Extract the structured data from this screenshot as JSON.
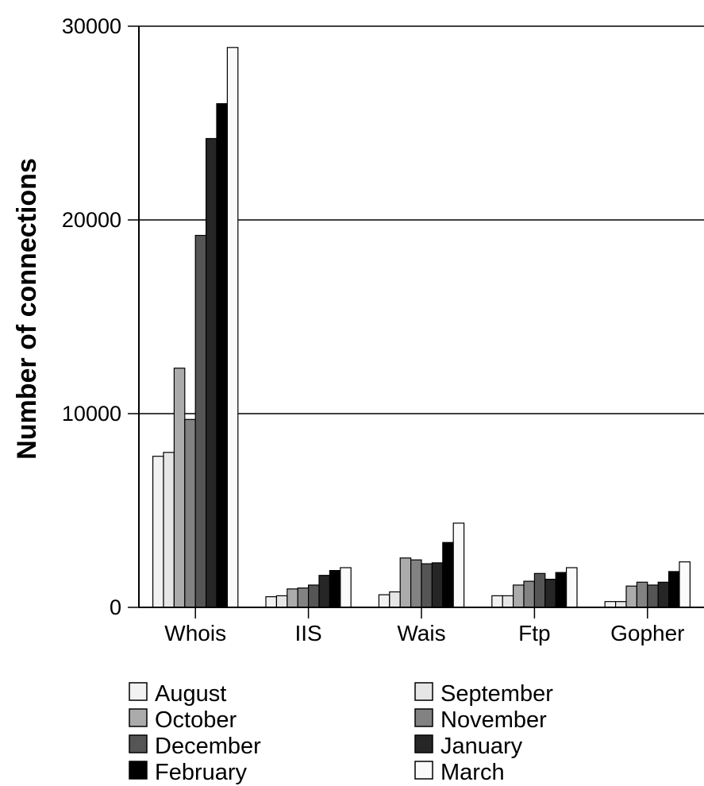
{
  "chart_data": {
    "type": "bar",
    "title": "",
    "xlabel": "",
    "ylabel": "Number of connections",
    "ylim": [
      0,
      30000
    ],
    "yticks": [
      0,
      10000,
      20000,
      30000
    ],
    "ytick_labels": [
      "0",
      "10000",
      "20000",
      "30000"
    ],
    "grid": true,
    "legend_position": "bottom",
    "categories": [
      "Whois",
      "IIS",
      "Wais",
      "Ftp",
      "Gopher"
    ],
    "series": [
      {
        "name": "August",
        "color": "#f2f2f2",
        "values": [
          7800,
          550,
          650,
          600,
          300
        ]
      },
      {
        "name": "September",
        "color": "#e6e6e6",
        "values": [
          8000,
          600,
          800,
          600,
          300
        ]
      },
      {
        "name": "October",
        "color": "#ababab",
        "values": [
          12350,
          950,
          2550,
          1150,
          1100
        ]
      },
      {
        "name": "November",
        "color": "#828282",
        "values": [
          9700,
          1000,
          2450,
          1350,
          1300
        ]
      },
      {
        "name": "December",
        "color": "#555555",
        "values": [
          19200,
          1150,
          2250,
          1750,
          1150
        ]
      },
      {
        "name": "January",
        "color": "#262626",
        "values": [
          24200,
          1650,
          2300,
          1450,
          1300
        ]
      },
      {
        "name": "February",
        "color": "#000000",
        "values": [
          26000,
          1900,
          3350,
          1800,
          1850
        ]
      },
      {
        "name": "March",
        "color": "#fafafa",
        "values": [
          28900,
          2050,
          4350,
          2050,
          2350
        ]
      }
    ]
  }
}
